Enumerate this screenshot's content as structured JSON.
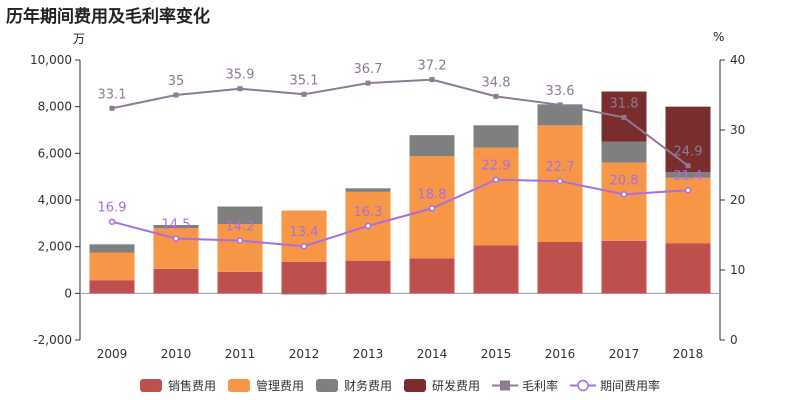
{
  "title": "历年期间费用及毛利率变化",
  "left_unit": "万",
  "right_unit": "%",
  "chart_data": {
    "type": "bar",
    "title": "历年期间费用及毛利率变化",
    "categories": [
      "2009",
      "2010",
      "2011",
      "2012",
      "2013",
      "2014",
      "2015",
      "2016",
      "2017",
      "2018"
    ],
    "y_left": {
      "label": "万",
      "range": [
        -2000,
        10000
      ],
      "ticks": [
        "-2,000",
        "0",
        "2,000",
        "4,000",
        "6,000",
        "8,000",
        "10,000"
      ],
      "tick_values": [
        -2000,
        0,
        2000,
        4000,
        6000,
        8000,
        10000
      ]
    },
    "y_right": {
      "label": "%",
      "range": [
        0,
        40
      ],
      "ticks": [
        "0",
        "10",
        "20",
        "30",
        "40"
      ],
      "tick_values": [
        0,
        10,
        20,
        30,
        40
      ]
    },
    "bar_series": [
      {
        "name": "销售费用",
        "color": "#c0504d",
        "values": [
          550,
          1050,
          920,
          1350,
          1400,
          1500,
          2050,
          2200,
          2250,
          2150
        ]
      },
      {
        "name": "管理费用",
        "color": "#f79646",
        "values": [
          1200,
          1750,
          2050,
          2200,
          2950,
          4380,
          4200,
          5000,
          3350,
          2800
        ]
      },
      {
        "name": "财务费用",
        "color": "#7f7f7f",
        "values": [
          350,
          130,
          750,
          -50,
          150,
          900,
          950,
          900,
          900,
          250
        ]
      },
      {
        "name": "研发费用",
        "color": "#7b2c2c",
        "values": [
          0,
          0,
          0,
          0,
          0,
          0,
          0,
          0,
          2150,
          2800
        ]
      }
    ],
    "line_series": [
      {
        "name": "毛利率",
        "color": "#8c7b93",
        "axis": "right",
        "marker": "square",
        "values": [
          33.1,
          35,
          35.9,
          35.1,
          36.7,
          37.2,
          34.8,
          33.6,
          31.8,
          24.9
        ],
        "labels": [
          "33.1",
          "35",
          "35.9",
          "35.1",
          "36.7",
          "37.2",
          "34.8",
          "33.6",
          "31.8",
          "24.9"
        ]
      },
      {
        "name": "期间费用率",
        "color": "#a96ee0",
        "axis": "right",
        "marker": "circle",
        "values": [
          16.9,
          14.5,
          14.2,
          13.4,
          16.3,
          18.8,
          22.9,
          22.7,
          20.8,
          21.4
        ],
        "labels": [
          "16.9",
          "14.5",
          "14.2",
          "13.4",
          "16.3",
          "18.8",
          "22.9",
          "22.7",
          "20.8",
          "21.4"
        ]
      }
    ],
    "grid": false,
    "legend_position": "bottom"
  }
}
